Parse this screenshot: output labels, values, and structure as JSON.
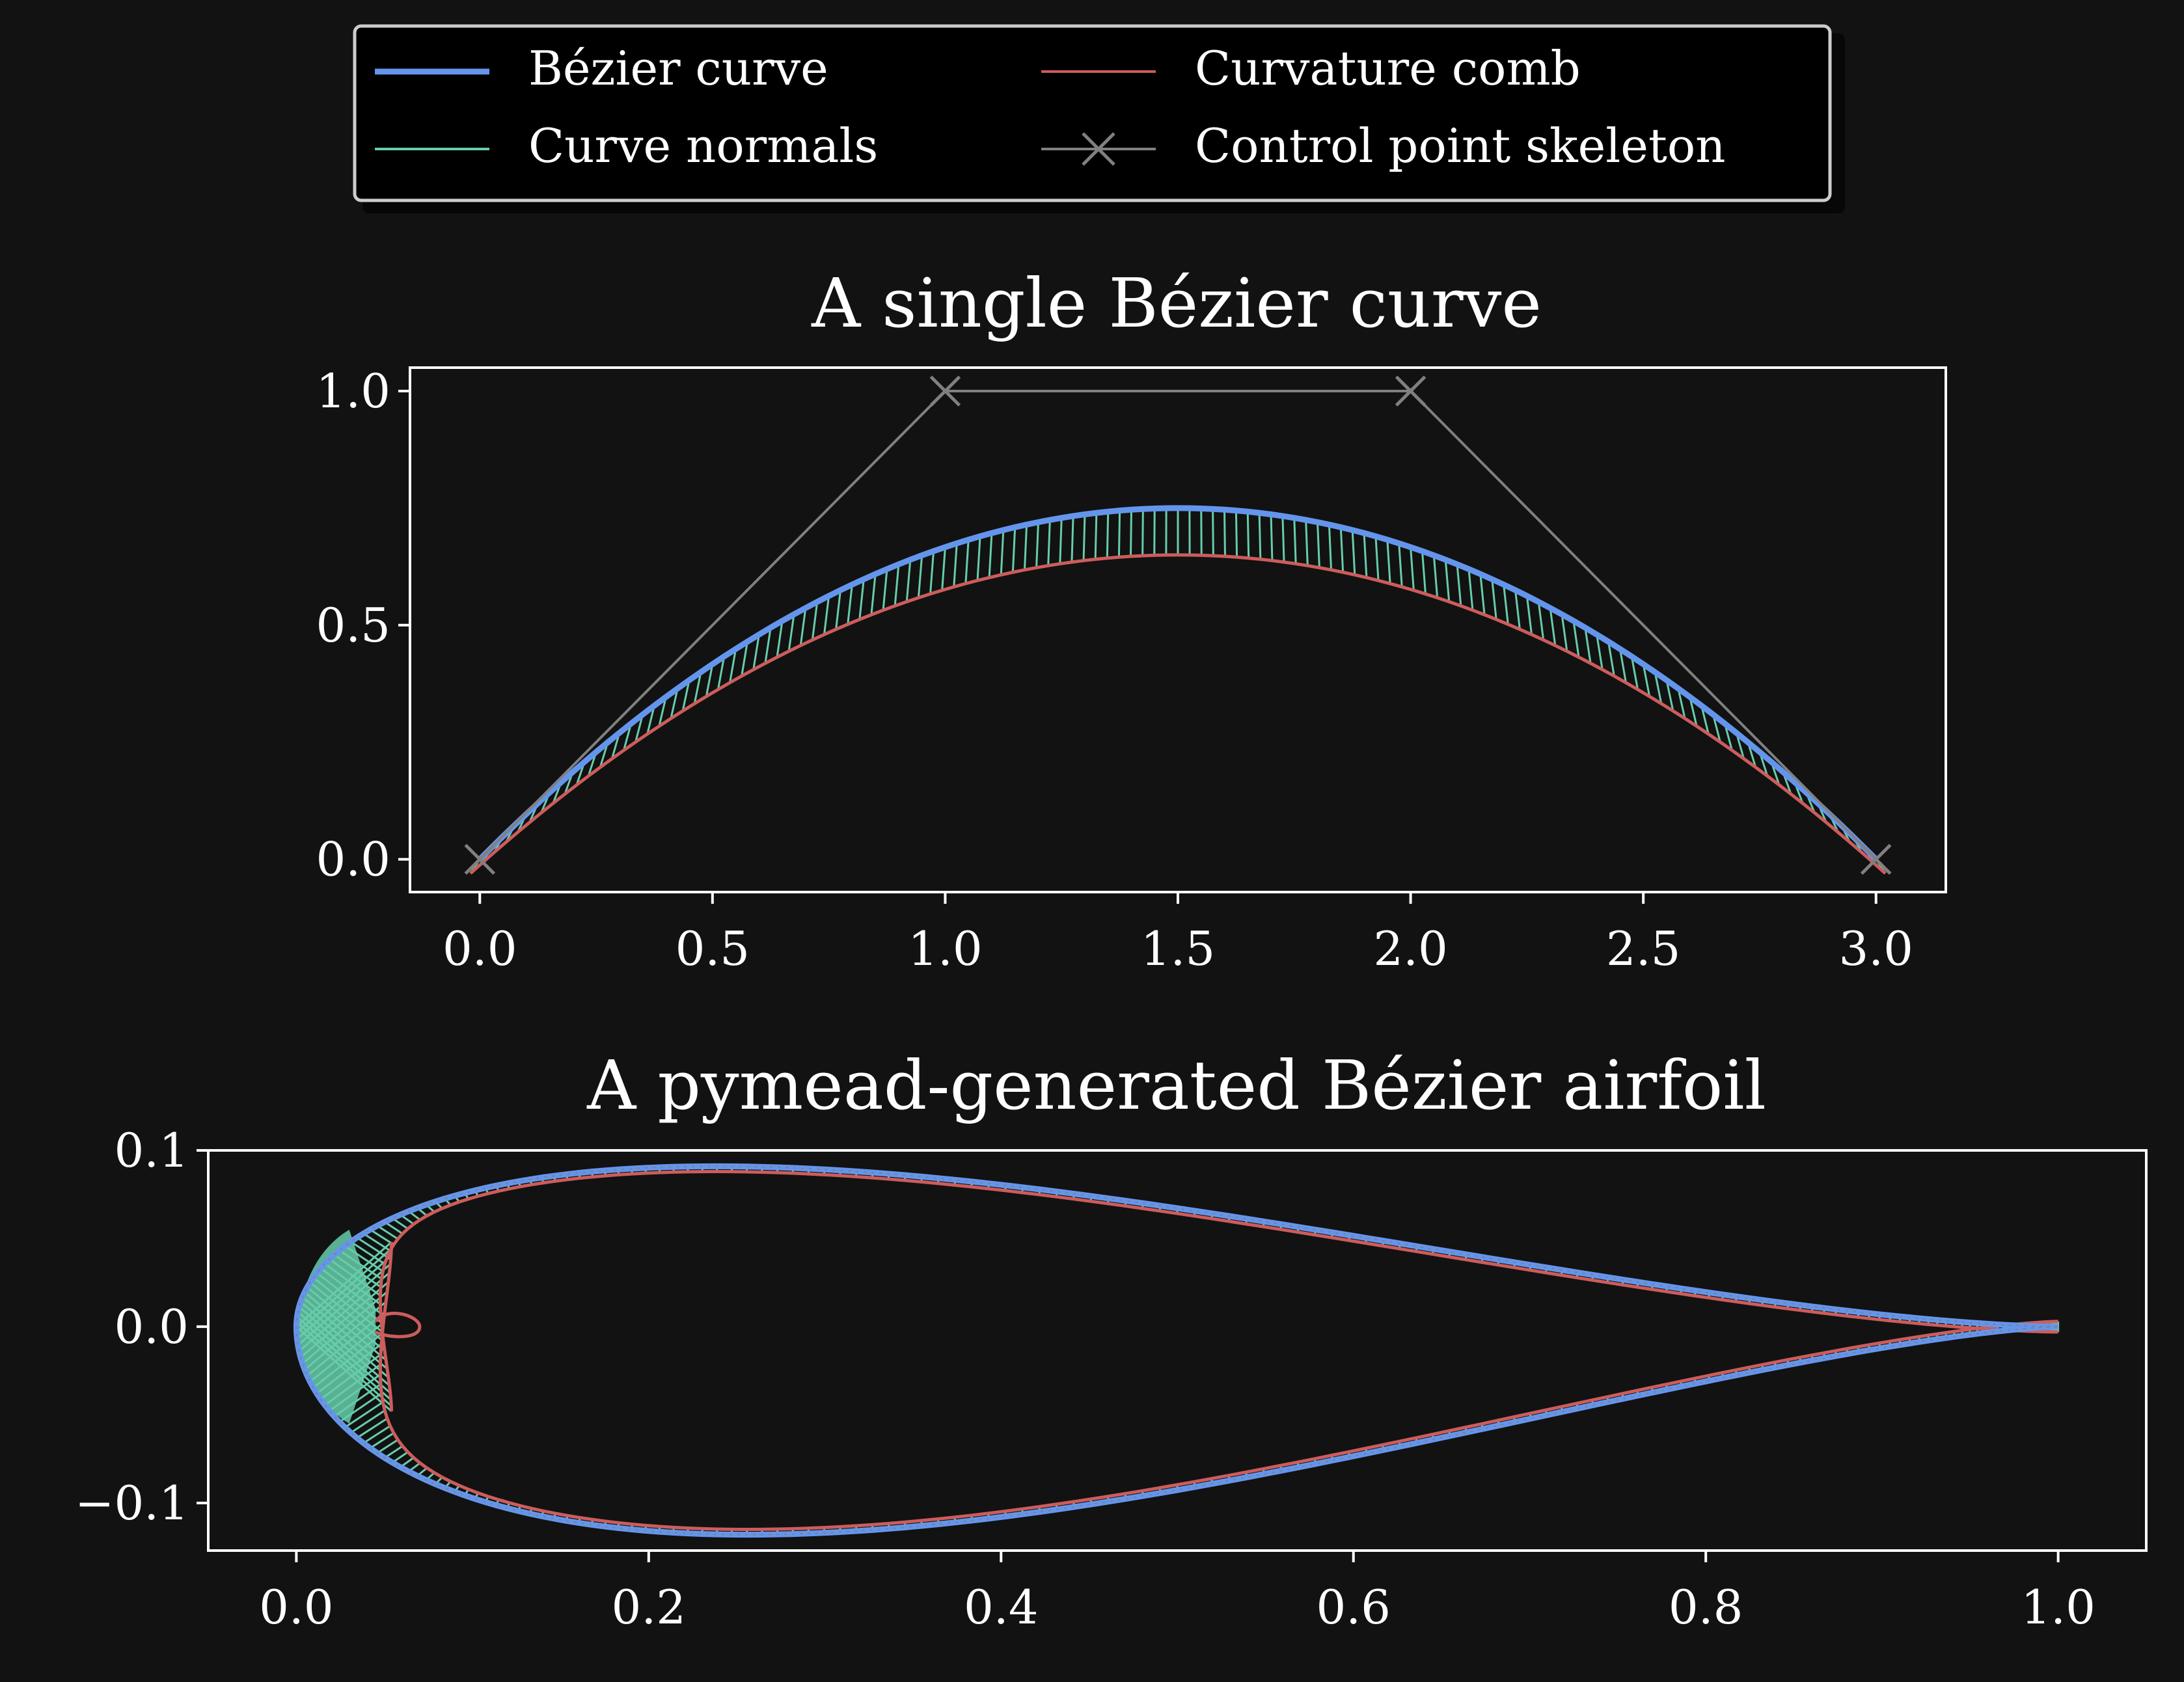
{
  "theme": {
    "background": "#121212",
    "axes_face": "#121212",
    "frame": "#ffffff",
    "text": "#ffffff",
    "curve": "#6495ed",
    "normals": "#66cdaa",
    "comb": "#cd5c5c",
    "skeleton": "#808080"
  },
  "legend": {
    "items": [
      {
        "label": "Bézier curve",
        "color": "#6495ed",
        "style": "thick-line"
      },
      {
        "label": "Curvature comb",
        "color": "#cd5c5c",
        "style": "line"
      },
      {
        "label": "Curve normals",
        "color": "#66cdaa",
        "style": "line"
      },
      {
        "label": "Control point skeleton",
        "color": "#808080",
        "style": "line-x-marker"
      }
    ],
    "columns": 2,
    "placement": "upper center, above plots"
  },
  "chart_data": [
    {
      "type": "line",
      "title": "A single Bézier curve",
      "xlabel": "",
      "ylabel": "",
      "xlim": [
        -0.15,
        3.15
      ],
      "ylim": [
        -0.07,
        1.05
      ],
      "xticks": [
        "0.0",
        "0.5",
        "1.0",
        "1.5",
        "2.0",
        "2.5",
        "3.0"
      ],
      "yticks": [
        "0.0",
        "0.5",
        "1.0"
      ],
      "grid": false,
      "control_points": [
        [
          0,
          0
        ],
        [
          1,
          1
        ],
        [
          2,
          1
        ],
        [
          3,
          0
        ]
      ],
      "series": [
        {
          "name": "Bézier curve",
          "kind": "cubic-bezier-from-control-points"
        },
        {
          "name": "Control point skeleton",
          "kind": "polyline-x-markers",
          "points": [
            [
              0,
              0
            ],
            [
              1,
              1
            ],
            [
              2,
              1
            ],
            [
              3,
              0
            ]
          ]
        },
        {
          "name": "Curve normals",
          "kind": "comb-teeth"
        },
        {
          "name": "Curvature comb",
          "kind": "comb-outline",
          "apex_y": 0.65,
          "end_offset": 0.03
        }
      ],
      "curve_apex": [
        1.5,
        0.75
      ]
    },
    {
      "type": "line",
      "title": "A pymead-generated Bézier airfoil",
      "xlabel": "",
      "ylabel": "",
      "xlim": [
        -0.05,
        1.05
      ],
      "ylim": [
        -0.127,
        0.1
      ],
      "xticks": [
        "0.0",
        "0.2",
        "0.4",
        "0.6",
        "0.8",
        "1.0"
      ],
      "yticks": [
        "0.1",
        "0.0",
        "−0.1"
      ],
      "grid": false,
      "airfoil": {
        "leading_edge": [
          0.0,
          0.0
        ],
        "trailing_edge": [
          1.0,
          0.0
        ],
        "upper_max": [
          0.24,
          0.091
        ],
        "lower_min": [
          0.3,
          -0.118
        ]
      },
      "series": [
        {
          "name": "Bézier curve",
          "kind": "airfoil-outline"
        },
        {
          "name": "Curve normals",
          "kind": "comb-teeth"
        },
        {
          "name": "Curvature comb",
          "kind": "comb-outline-with-leading-edge-loop",
          "loop_tip_x": 0.07
        }
      ]
    }
  ]
}
